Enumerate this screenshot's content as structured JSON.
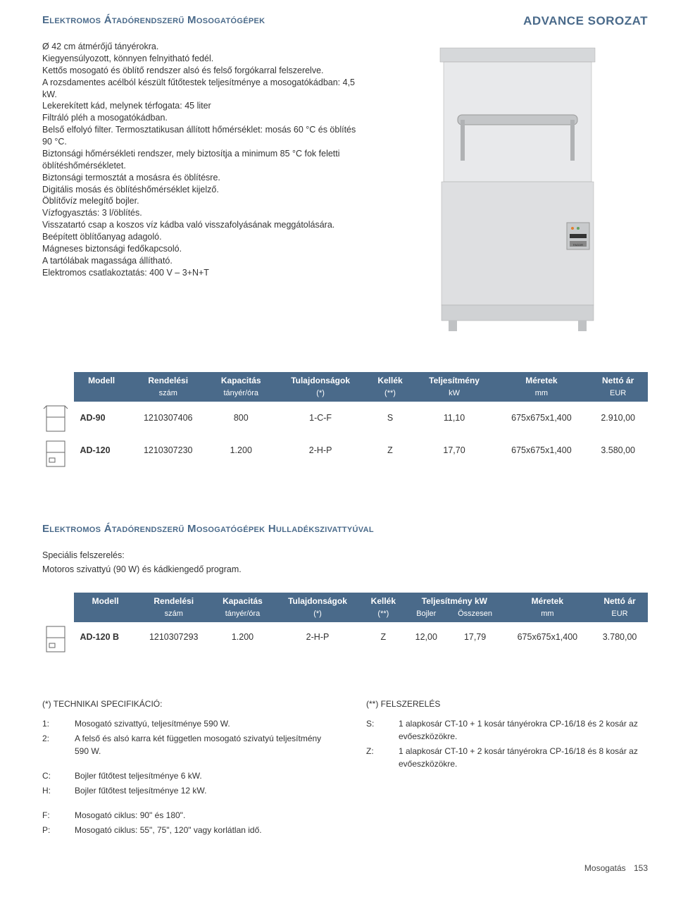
{
  "header": {
    "section_title": "Elektromos Átadórendszerű Mosogatógépek",
    "series_title": "ADVANCE SOROZAT"
  },
  "description_lines": [
    "Ø 42 cm átmérőjű tányérokra.",
    "Kiegyensúlyozott, könnyen felnyitható fedél.",
    "Kettős mosogató és öblítő rendszer alsó és felső forgókarral felszerelve.",
    "A rozsdamentes acélból készült fűtőtestek teljesítménye a mosogatókádban: 4,5 kW.",
    "Lekerekített kád, melynek térfogata: 45 liter",
    "Filtráló pléh a mosogatókádban.",
    "Belső elfolyó filter. Termosztatikusan állított hőmérséklet: mosás 60 °C és öblítés 90 °C.",
    "Biztonsági hőmérsékleti rendszer, mely biztosítja a minimum 85 °C fok feletti öblítéshőmérsékletet.",
    "Biztonsági termosztát a mosásra és öblítésre.",
    "Digitális mosás és öblítéshőmérséklet kijelző.",
    "Öblítővíz melegítő bojler.",
    "Vízfogyasztás: 3 l/öblítés.",
    "Visszatartó csap a koszos víz kádba való visszafolyásának meggátolására.",
    "Beépített öblítőanyag adagoló.",
    "Mágneses biztonsági fedőkapcsoló.",
    "A tartólábak magassága állítható.",
    "Elektromos csatlakoztatás: 400 V – 3+N+T"
  ],
  "table1": {
    "headers": [
      "Modell",
      "Rendelési",
      "Kapacitás",
      "Tulajdonságok",
      "Kellék",
      "Teljesítmény",
      "Méretek",
      "Nettó ár"
    ],
    "subheaders": [
      "",
      "szám",
      "tányér/óra",
      "(*)",
      "(**)",
      "kW",
      "mm",
      "EUR"
    ],
    "rows": [
      {
        "model": "AD-90",
        "ref": "1210307406",
        "cap": "800",
        "feat": "1-C-F",
        "acc": "S",
        "pow": "11,10",
        "dim": "675x675x1,400",
        "price": "2.910,00"
      },
      {
        "model": "AD-120",
        "ref": "1210307230",
        "cap": "1.200",
        "feat": "2-H-P",
        "acc": "Z",
        "pow": "17,70",
        "dim": "675x675x1,400",
        "price": "3.580,00"
      }
    ]
  },
  "section2": {
    "title": "Elektromos Átadórendszerű Mosogatógépek Hulladékszivattyúval",
    "spec_label": "Speciális felszerelés:",
    "spec_text": "Motoros szivattyú (90 W) és kádkiengedő program."
  },
  "table2": {
    "headers": [
      "Modell",
      "Rendelési",
      "Kapacitás",
      "Tulajdonságok",
      "Kellék",
      "Teljesítmény kW",
      "",
      "Méretek",
      "Nettó ár"
    ],
    "subheaders": [
      "",
      "szám",
      "tányér/óra",
      "(*)",
      "(**)",
      "Bojler",
      "Összesen",
      "mm",
      "EUR"
    ],
    "rows": [
      {
        "model": "AD-120 B",
        "ref": "1210307293",
        "cap": "1.200",
        "feat": "2-H-P",
        "acc": "Z",
        "bojler": "12,00",
        "total": "17,79",
        "dim": "675x675x1,400",
        "price": "3.780,00"
      }
    ]
  },
  "footnotes": {
    "left_head": "(*)    TECHNIKAI SPECIFIKÁCIÓ:",
    "left": [
      {
        "k": "1:",
        "v": "Mosogató szivattyú, teljesítménye 590 W."
      },
      {
        "k": "2:",
        "v": "A felső és alsó karra két független mosogató szivatyú teljesítmény 590 W."
      },
      {
        "k": "C:",
        "v": "Bojler fűtőtest teljesítménye 6 kW."
      },
      {
        "k": "H:",
        "v": "Bojler fűtőtest teljesítménye 12 kW."
      },
      {
        "k": "F:",
        "v": "Mosogató ciklus: 90\" és 180\"."
      },
      {
        "k": "P:",
        "v": "Mosogató ciklus: 55\", 75\", 120\" vagy korlátlan idő."
      }
    ],
    "right_head": "(**)    FELSZERELÉS",
    "right": [
      {
        "k": "S:",
        "v": "1 alapkosár CT-10 + 1 kosár tányérokra CP-16/18 és 2 kosár az evőeszközökre."
      },
      {
        "k": "Z:",
        "v": "1 alapkosár CT-10 + 2 kosár tányérokra CP-16/18 és  8 kosár az evőeszközökre."
      }
    ]
  },
  "footer": {
    "label": "Mosogatás",
    "page": "153"
  },
  "colors": {
    "accent": "#4a6a8a",
    "steel": "#d6d8da",
    "steel_dark": "#b8babd"
  }
}
